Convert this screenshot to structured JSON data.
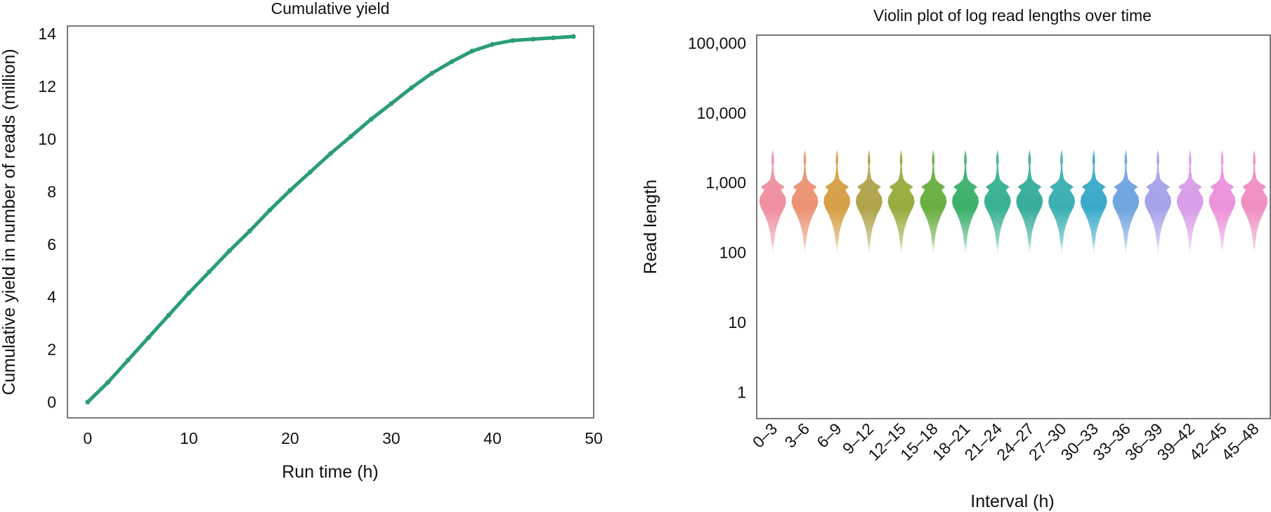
{
  "chart_data": [
    {
      "type": "scatter",
      "title": "Cumulative yield",
      "xlabel": "Run time (h)",
      "ylabel": "Cumulative yield in number of reads (million)",
      "xlim": [
        -2,
        50
      ],
      "ylim": [
        -0.6,
        14.3
      ],
      "xticks": [
        0,
        10,
        20,
        30,
        40,
        50
      ],
      "yticks": [
        0,
        2,
        4,
        6,
        8,
        10,
        12,
        14
      ],
      "color": "#2a9d74",
      "series": [
        {
          "name": "Cumulative yield",
          "x": [
            0,
            2,
            4,
            6,
            8,
            10,
            12,
            14,
            16,
            18,
            20,
            22,
            24,
            26,
            28,
            30,
            32,
            34,
            36,
            38,
            40,
            42,
            44,
            46,
            48
          ],
          "y": [
            0.0,
            0.75,
            1.6,
            2.45,
            3.3,
            4.15,
            4.95,
            5.75,
            6.5,
            7.3,
            8.05,
            8.75,
            9.45,
            10.1,
            10.75,
            11.35,
            11.95,
            12.5,
            12.95,
            13.35,
            13.6,
            13.75,
            13.8,
            13.85,
            13.9
          ]
        }
      ]
    },
    {
      "type": "violin",
      "title": "Violin plot of log read lengths over time",
      "xlabel": "Interval (h)",
      "ylabel": "Read length",
      "yscale": "log",
      "ylim": [
        0.42,
        130000
      ],
      "yticks": [
        1,
        10,
        100,
        1000,
        10000,
        100000
      ],
      "ytick_labels": [
        "1",
        "10",
        "100",
        "1,000",
        "10,000",
        "100,000"
      ],
      "categories": [
        "0–3",
        "3–6",
        "6–9",
        "9–12",
        "12–15",
        "15–18",
        "18–21",
        "21–24",
        "24–27",
        "27–30",
        "30–33",
        "33–36",
        "36–39",
        "39–42",
        "42–45",
        "45–48"
      ],
      "colors": [
        "#f08fa0",
        "#ec9273",
        "#d59f45",
        "#b0a44b",
        "#97ac3d",
        "#6aae40",
        "#3bb06a",
        "#38b191",
        "#37ad9b",
        "#3aafb2",
        "#3aa9c9",
        "#6fa4df",
        "#a6a2e9",
        "#d89de8",
        "#ec92dc",
        "#ef8fc0"
      ],
      "median": 600,
      "range": [
        110,
        3000
      ]
    }
  ]
}
